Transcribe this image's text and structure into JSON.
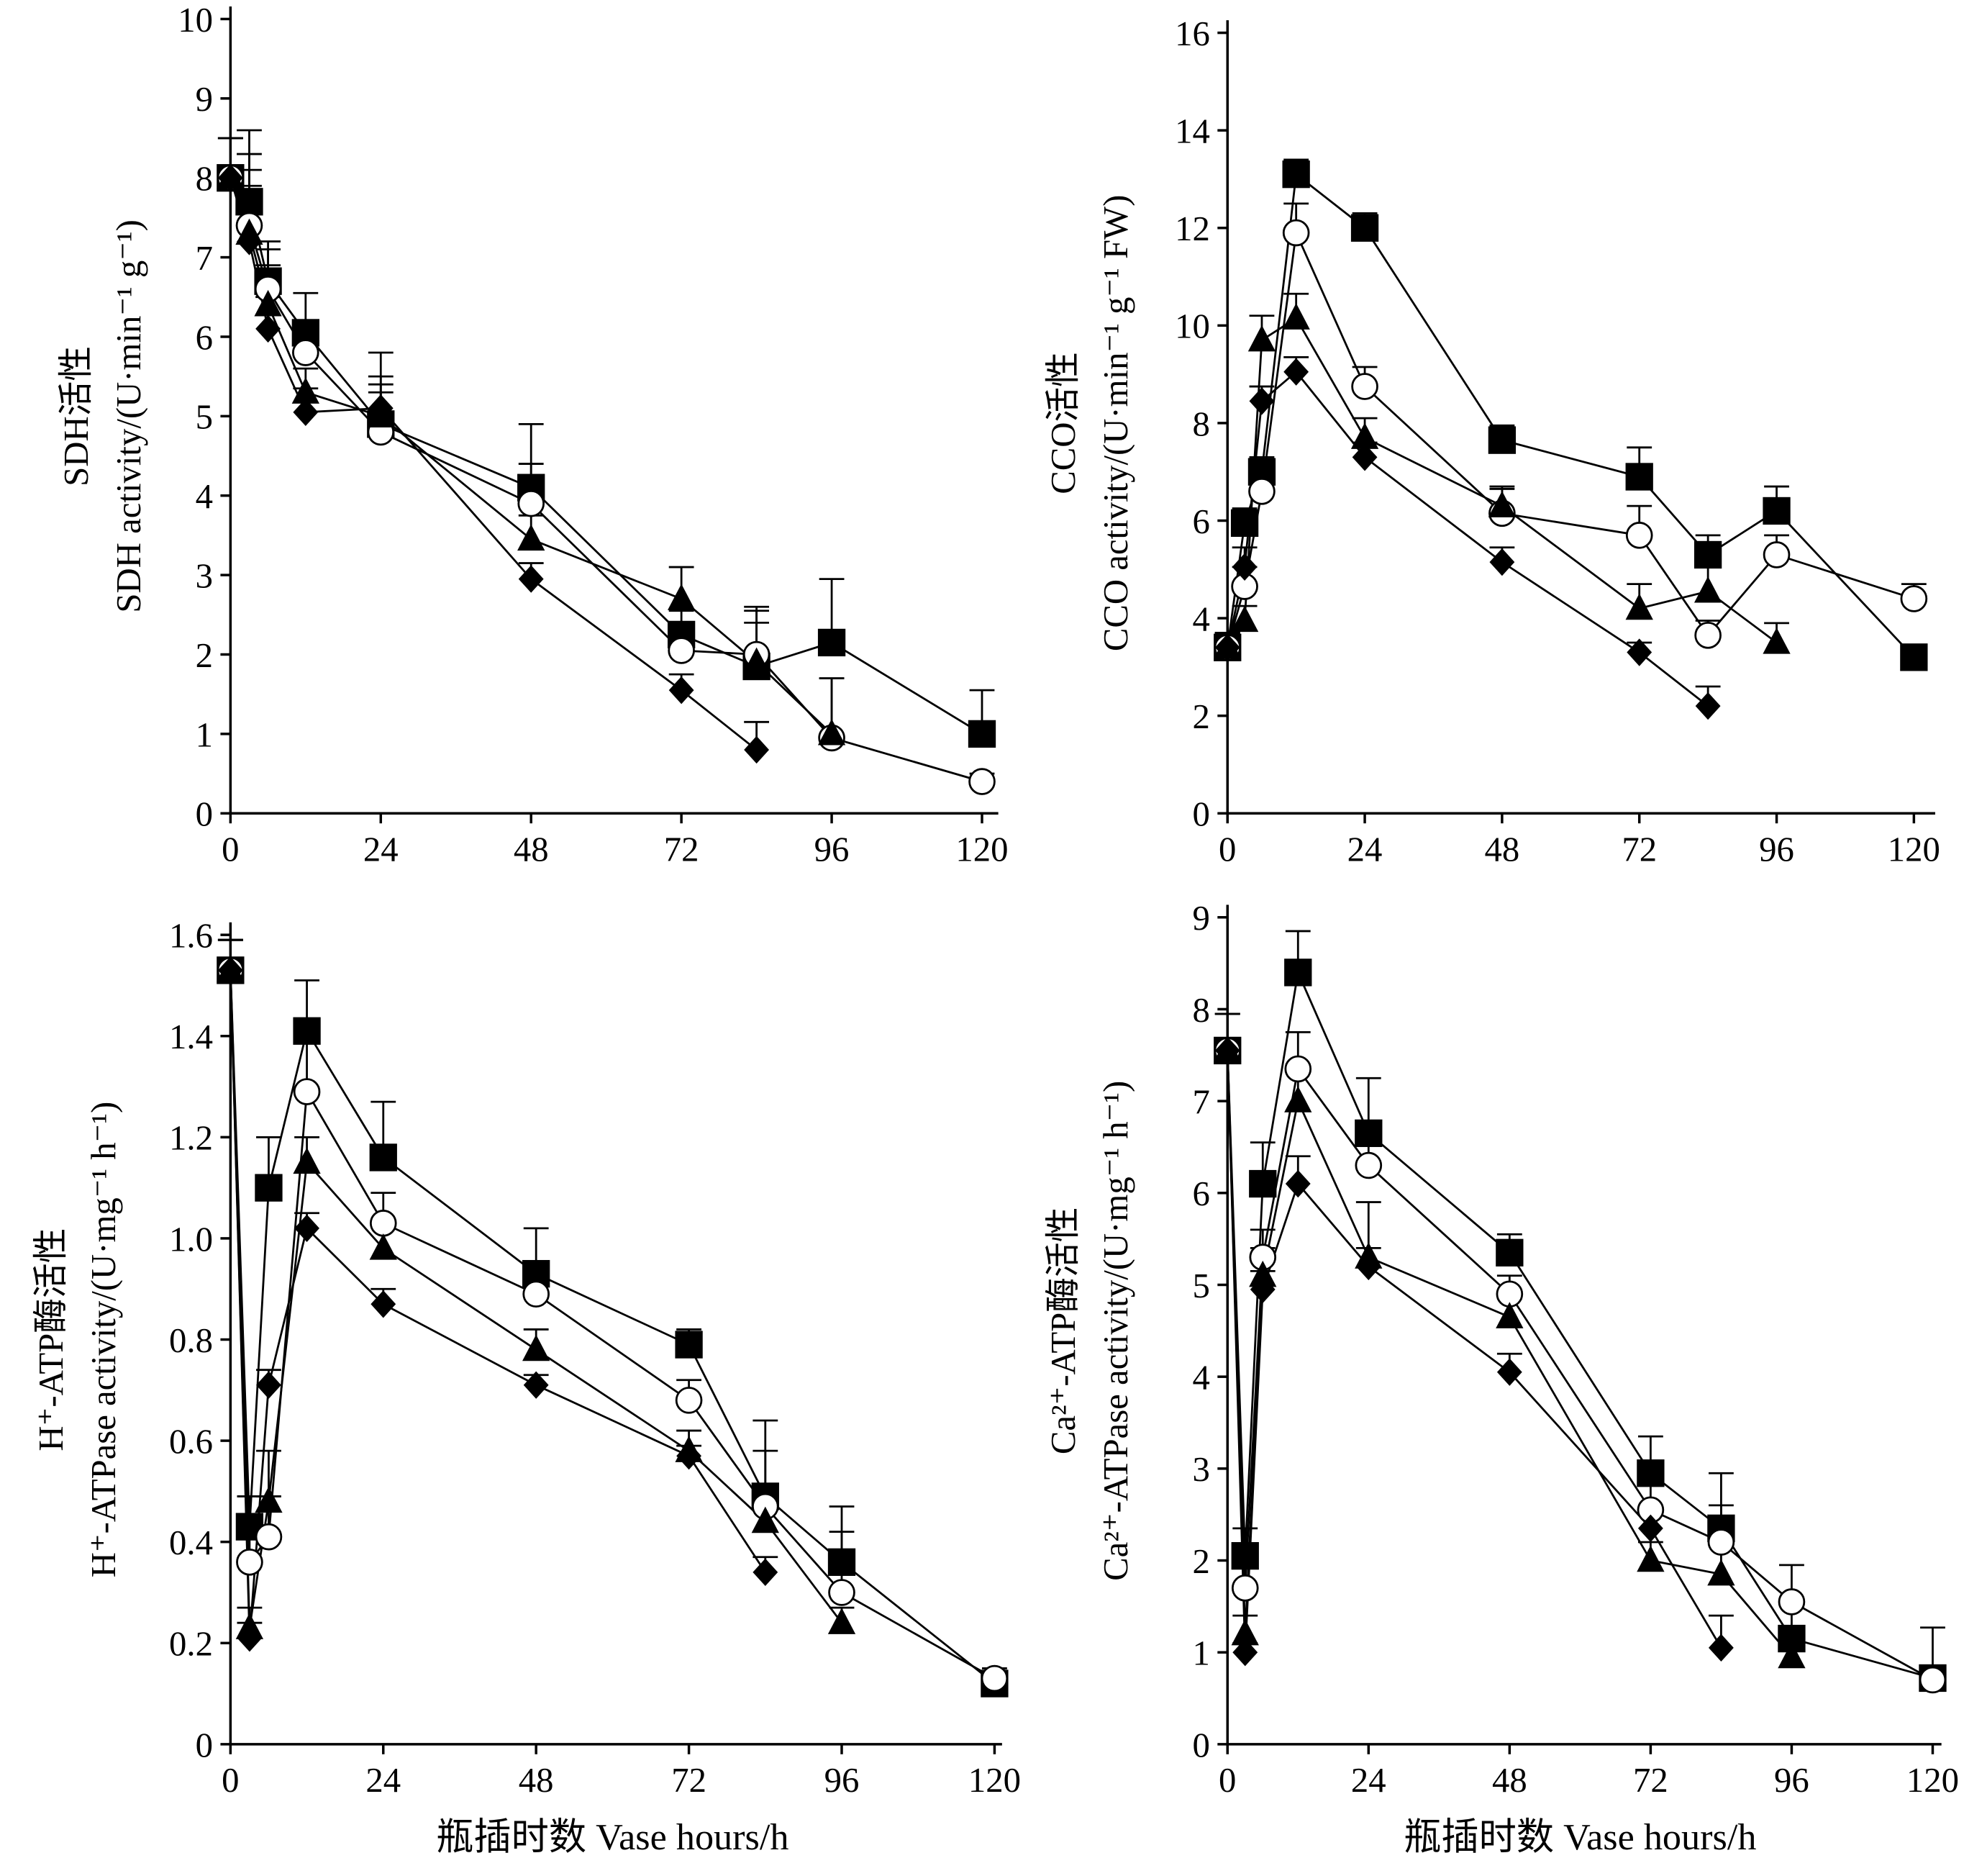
{
  "chart_data": [
    {
      "type": "line",
      "ylabel": [
        "SDH活性",
        "SDH activity/(U·min⁻¹ g⁻¹)"
      ],
      "x": [
        0,
        3,
        6,
        12,
        24,
        48,
        72,
        84,
        96,
        120
      ],
      "xlim": [
        0,
        120
      ],
      "xticks": [
        0,
        24,
        48,
        72,
        96,
        120
      ],
      "ylim": [
        0,
        10
      ],
      "yticks": [
        0,
        1,
        2,
        3,
        4,
        5,
        6,
        7,
        8,
        9,
        10
      ],
      "series": [
        {
          "marker": "square",
          "color": "#000000",
          "values": [
            8.0,
            7.7,
            6.7,
            6.05,
            4.9,
            4.1,
            2.25,
            1.85,
            2.15,
            1.0
          ],
          "errors": [
            0.5,
            0.9,
            0.5,
            0.5,
            0.9,
            0.8,
            0.3,
            0.7,
            0.8,
            0.55
          ]
        },
        {
          "marker": "circle",
          "color": "#000000",
          "values": [
            8.0,
            7.4,
            6.6,
            5.8,
            4.8,
            3.9,
            2.05,
            2.0,
            0.95,
            0.4
          ],
          "errors": [
            0.5,
            0.9,
            0.5,
            0.4,
            0.5,
            0.5,
            0.3,
            0.6,
            0.75,
            0.1
          ]
        },
        {
          "marker": "triangle",
          "color": "#000000",
          "values": [
            8.0,
            7.3,
            6.4,
            5.3,
            5.0,
            3.45,
            2.7,
            1.9,
            1.0,
            null
          ],
          "errors": [
            0.5,
            0.8,
            0.5,
            0.3,
            0.5,
            0.3,
            0.4,
            0.5,
            0.7,
            null
          ]
        },
        {
          "marker": "diamond",
          "color": "#000000",
          "values": [
            8.0,
            7.2,
            6.1,
            5.05,
            5.1,
            2.95,
            1.55,
            0.8,
            null,
            null
          ],
          "errors": [
            0.5,
            0.7,
            0.4,
            0.3,
            0.3,
            0.2,
            0.2,
            0.35,
            null,
            null
          ]
        }
      ]
    },
    {
      "type": "line",
      "ylabel": [
        "CCO活性",
        "CCO activity/(U·min⁻¹ g⁻¹ FW)"
      ],
      "x": [
        0,
        3,
        6,
        12,
        24,
        48,
        72,
        84,
        96,
        120
      ],
      "xlim": [
        0,
        120
      ],
      "xticks": [
        0,
        24,
        48,
        72,
        96,
        120
      ],
      "ylim": [
        0,
        16
      ],
      "yticks": [
        0,
        2,
        4,
        6,
        8,
        10,
        12,
        14,
        16
      ],
      "series": [
        {
          "marker": "square",
          "color": "#000000",
          "values": [
            3.4,
            5.95,
            7.0,
            13.1,
            12.0,
            7.65,
            6.9,
            5.3,
            6.2,
            3.2
          ],
          "errors": [
            0.3,
            0.3,
            0.3,
            0.3,
            0.3,
            0.3,
            0.6,
            0.4,
            0.5,
            0.2
          ]
        },
        {
          "marker": "circle",
          "color": "#000000",
          "values": [
            3.4,
            4.65,
            6.6,
            11.9,
            8.75,
            6.15,
            5.7,
            3.65,
            5.3,
            4.4
          ],
          "errors": [
            0.3,
            0.4,
            0.3,
            0.6,
            0.4,
            0.5,
            0.6,
            0.3,
            0.4,
            0.3
          ]
        },
        {
          "marker": "triangle",
          "color": "#000000",
          "values": [
            3.4,
            3.95,
            9.7,
            10.15,
            7.7,
            6.3,
            4.2,
            4.55,
            3.5,
            null
          ],
          "errors": [
            0.3,
            0.3,
            0.5,
            0.5,
            0.4,
            0.4,
            0.5,
            0.5,
            0.4,
            null
          ]
        },
        {
          "marker": "diamond",
          "color": "#000000",
          "values": [
            3.4,
            5.05,
            8.45,
            9.05,
            7.3,
            5.15,
            3.3,
            2.2,
            null,
            null
          ],
          "errors": [
            0.3,
            0.4,
            0.3,
            0.3,
            0.3,
            0.3,
            0.2,
            0.4,
            null,
            null
          ]
        }
      ]
    },
    {
      "type": "line",
      "ylabel": [
        "H⁺-ATP酶活性",
        "H⁺-ATPase activity/(U·mg⁻¹ h⁻¹)"
      ],
      "xlabel": "瓶插时数  Vase hours/h",
      "x": [
        0,
        3,
        6,
        12,
        24,
        48,
        72,
        84,
        96,
        120
      ],
      "xlim": [
        0,
        120
      ],
      "xticks": [
        0,
        24,
        48,
        72,
        96,
        120
      ],
      "ylim": [
        0,
        1.6
      ],
      "yticks": [
        0,
        0.2,
        0.4,
        0.6,
        0.8,
        {
          "value": 1,
          "label": "1.0"
        },
        1.2,
        1.4,
        1.6
      ],
      "series": [
        {
          "marker": "square",
          "color": "#000000",
          "values": [
            1.53,
            0.43,
            1.1,
            1.41,
            1.16,
            0.93,
            0.79,
            0.49,
            0.36,
            0.12
          ],
          "errors": [
            0.06,
            0.06,
            0.1,
            0.1,
            0.11,
            0.09,
            0.03,
            0.15,
            0.11,
            0.02
          ]
        },
        {
          "marker": "circle",
          "color": "#000000",
          "values": [
            1.53,
            0.36,
            0.41,
            1.29,
            1.03,
            0.89,
            0.68,
            0.47,
            0.3,
            0.13
          ],
          "errors": [
            0.06,
            0.07,
            0.08,
            0.1,
            0.06,
            0.06,
            0.04,
            0.11,
            0.12,
            0.02
          ]
        },
        {
          "marker": "triangle",
          "color": "#000000",
          "values": [
            1.53,
            0.23,
            0.48,
            1.15,
            0.98,
            0.78,
            0.58,
            0.44,
            0.24,
            null
          ],
          "errors": [
            0.06,
            0.04,
            0.1,
            0.05,
            0.05,
            0.04,
            0.04,
            0.05,
            0.03,
            null
          ]
        },
        {
          "marker": "diamond",
          "color": "#000000",
          "values": [
            1.53,
            0.21,
            0.71,
            1.02,
            0.87,
            0.71,
            0.57,
            0.34,
            null,
            null
          ],
          "errors": [
            0.06,
            0.03,
            0.03,
            0.03,
            0.03,
            0.02,
            0.02,
            0.03,
            null,
            null
          ]
        }
      ]
    },
    {
      "type": "line",
      "ylabel": [
        "Ca²⁺-ATP酶活性",
        "Ca²⁺-ATPase activity/(U·mg⁻¹ h⁻¹)"
      ],
      "xlabel": "瓶插时数  Vase hours/h",
      "x": [
        0,
        3,
        6,
        12,
        24,
        48,
        72,
        84,
        96,
        120
      ],
      "xlim": [
        0,
        120
      ],
      "xticks": [
        0,
        24,
        48,
        72,
        96,
        120
      ],
      "ylim": [
        0,
        9
      ],
      "yticks": [
        0,
        1,
        2,
        3,
        4,
        5,
        6,
        7,
        8,
        9
      ],
      "series": [
        {
          "marker": "square",
          "color": "#000000",
          "values": [
            7.55,
            2.05,
            6.1,
            8.4,
            6.65,
            5.35,
            2.95,
            2.35,
            1.15,
            0.72
          ],
          "errors": [
            0.4,
            0.3,
            0.45,
            0.45,
            0.6,
            0.2,
            0.4,
            0.6,
            0.35,
            0.55
          ]
        },
        {
          "marker": "circle",
          "color": "#000000",
          "values": [
            7.55,
            1.7,
            5.3,
            7.35,
            6.3,
            4.9,
            2.55,
            2.2,
            1.55,
            0.7
          ],
          "errors": [
            0.4,
            0.3,
            0.3,
            0.4,
            0.4,
            0.2,
            0.3,
            0.4,
            0.4,
            0.1
          ]
        },
        {
          "marker": "triangle",
          "color": "#000000",
          "values": [
            7.55,
            1.2,
            5.1,
            7.0,
            5.3,
            4.65,
            2.0,
            1.85,
            0.95,
            null
          ],
          "errors": [
            0.4,
            0.2,
            0.3,
            0.4,
            0.6,
            0.2,
            0.2,
            0.4,
            0.2,
            null
          ]
        },
        {
          "marker": "diamond",
          "color": "#000000",
          "values": [
            7.55,
            1.0,
            4.95,
            6.1,
            5.2,
            4.05,
            2.35,
            1.05,
            null,
            null
          ],
          "errors": [
            0.4,
            0.1,
            0.2,
            0.3,
            0.2,
            0.2,
            0.2,
            0.35,
            null,
            null
          ]
        }
      ]
    }
  ]
}
